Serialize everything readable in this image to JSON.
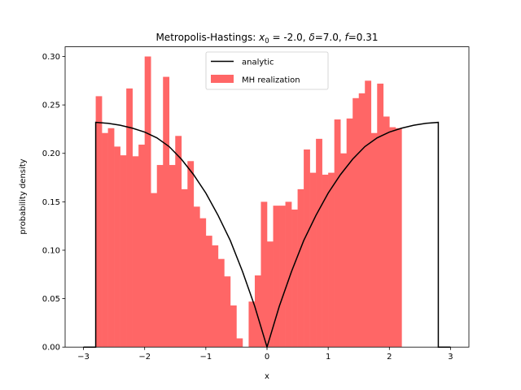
{
  "chart_data": {
    "type": "bar",
    "title": {
      "prefix": "Metropolis-Hastings: ",
      "x0_symbol": "x",
      "x0_subscript": "0",
      "x0_value": " = -2.0, ",
      "delta_symbol": "δ",
      "delta_value": "=7.0, ",
      "f_symbol": "f",
      "f_value": "=0.31"
    },
    "xlabel": "x",
    "ylabel": "probability density",
    "xlim": [
      -3.3,
      3.3
    ],
    "ylim": [
      0,
      0.31
    ],
    "xticks": [
      -3,
      -2,
      -1,
      0,
      1,
      2,
      3
    ],
    "xtick_labels": [
      "−3",
      "−2",
      "−1",
      "0",
      "1",
      "2",
      "3"
    ],
    "yticks": [
      0.0,
      0.05,
      0.1,
      0.15,
      0.2,
      0.25,
      0.3
    ],
    "ytick_labels": [
      "0.00",
      "0.05",
      "0.10",
      "0.15",
      "0.20",
      "0.25",
      "0.30"
    ],
    "grid": false,
    "legend": {
      "placement": "upper-center",
      "entries": [
        {
          "label": "analytic",
          "kind": "line",
          "color": "#000000"
        },
        {
          "label": "MH realization",
          "kind": "patch",
          "color": "#ff6666"
        }
      ]
    },
    "histogram": {
      "name": "MH realization",
      "color": "#ff6666",
      "bin_start": -2.8,
      "bin_width": 0.1,
      "values": [
        0.259,
        0.221,
        0.226,
        0.207,
        0.198,
        0.267,
        0.197,
        0.209,
        0.3,
        0.159,
        0.188,
        0.279,
        0.188,
        0.218,
        0.163,
        0.192,
        0.145,
        0.133,
        0.115,
        0.105,
        0.091,
        0.073,
        0.043,
        0.009,
        0.0,
        0.047,
        0.074,
        0.15,
        0.109,
        0.146,
        0.146,
        0.15,
        0.142,
        0.163,
        0.204,
        0.18,
        0.215,
        0.178,
        0.18,
        0.235,
        0.2,
        0.236,
        0.257,
        0.262,
        0.275,
        0.221,
        0.272,
        0.238,
        0.227,
        0.226
      ]
    },
    "analytic": {
      "name": "analytic",
      "color": "#000000",
      "x": [
        -3.0,
        -2.8,
        -2.8,
        -2.6,
        -2.4,
        -2.2,
        -2.0,
        -1.8,
        -1.6,
        -1.4,
        -1.2,
        -1.0,
        -0.8,
        -0.6,
        -0.4,
        -0.2,
        0.0,
        0.2,
        0.4,
        0.6,
        0.8,
        1.0,
        1.2,
        1.4,
        1.6,
        1.8,
        2.0,
        2.2,
        2.4,
        2.6,
        2.8,
        2.8,
        3.0
      ],
      "y": [
        0.0,
        0.0,
        0.232,
        0.231,
        0.229,
        0.226,
        0.222,
        0.216,
        0.207,
        0.194,
        0.178,
        0.159,
        0.136,
        0.11,
        0.078,
        0.042,
        0.0,
        0.042,
        0.078,
        0.11,
        0.136,
        0.159,
        0.178,
        0.194,
        0.207,
        0.216,
        0.222,
        0.226,
        0.229,
        0.231,
        0.232,
        0.0,
        0.0
      ]
    }
  }
}
